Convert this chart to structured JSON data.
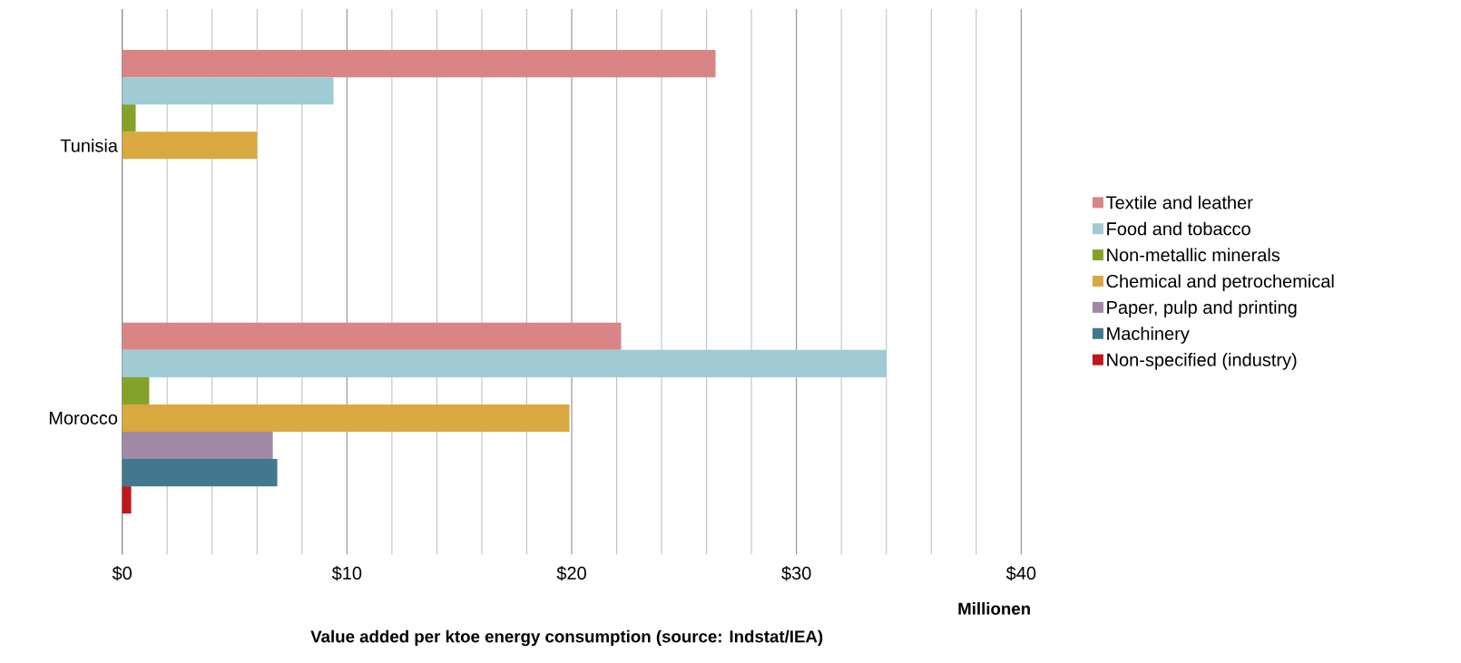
{
  "chart_data": {
    "type": "bar",
    "orientation": "horizontal",
    "categories": [
      "Tunisia",
      "Morocco"
    ],
    "series": [
      {
        "name": "Textile and leather",
        "color": "#d98585",
        "values": [
          26.4,
          22.2
        ]
      },
      {
        "name": "Food and tobacco",
        "color": "#9ecbd4",
        "values": [
          9.4,
          34.0
        ]
      },
      {
        "name": "Non-metallic minerals",
        "color": "#84a22a",
        "values": [
          0.6,
          1.2
        ]
      },
      {
        "name": "Chemical and petrochemical",
        "color": "#d9a840",
        "values": [
          6.0,
          19.9
        ]
      },
      {
        "name": "Paper, pulp and printing",
        "color": "#a088a6",
        "values": [
          null,
          6.7
        ]
      },
      {
        "name": "Machinery",
        "color": "#41788d",
        "values": [
          null,
          6.9
        ]
      },
      {
        "name": "Non-specified (industry)",
        "color": "#c0171c",
        "values": [
          null,
          0.4
        ]
      }
    ],
    "xlim": [
      0,
      40
    ],
    "xticks": [
      {
        "value": 0,
        "label": "$0"
      },
      {
        "value": 10,
        "label": "$10"
      },
      {
        "value": 20,
        "label": "$20"
      },
      {
        "value": 30,
        "label": "$30"
      },
      {
        "value": 40,
        "label": "$40"
      }
    ],
    "xlabel": "Value added per ktoe energy consumption (source: Indstat/IEA)",
    "annotations": [
      "Millionen"
    ],
    "grid": "x",
    "legend": "right"
  }
}
